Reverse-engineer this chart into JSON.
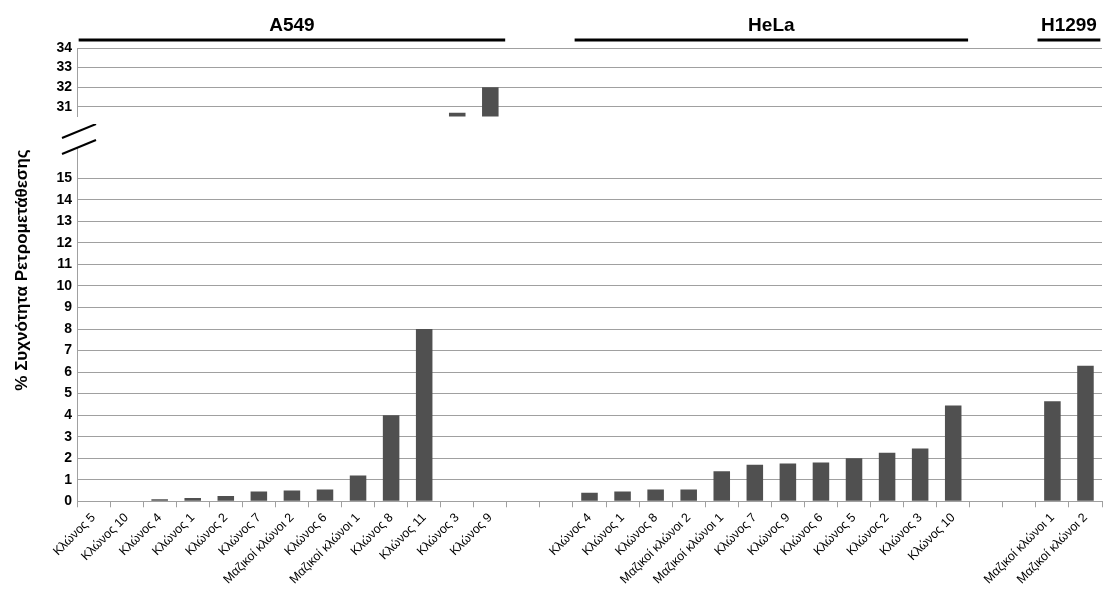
{
  "chart_data": [
    {
      "type": "bar",
      "annotations": [
        "A549",
        "HeLa",
        "H1299"
      ],
      "values": [
        null,
        null,
        null,
        null,
        null,
        null,
        null,
        null,
        null,
        null,
        null,
        30.7,
        32,
        null,
        null,
        null,
        null,
        null,
        null,
        null,
        null,
        null,
        null,
        null,
        null,
        null,
        null,
        null,
        null,
        null,
        null
      ],
      "color": "#505050",
      "ylim": [
        30.5,
        34
      ],
      "yticks": [
        31,
        32,
        33,
        34
      ],
      "grid": "y",
      "tick_labels": "y"
    },
    {
      "type": "bar",
      "ylabel": "% Συχνότητα Ρετρομετάθεσης",
      "categories": [
        "Κλώνος 5",
        "Κλώνος 10",
        "Κλώνος 4",
        "Κλώνος 1",
        "Κλώνος 2",
        "Κλώνος 7",
        "Μαζικοί κλώνοι 2",
        "Κλώνος 6",
        "Μαζικοί κλώνοι 1",
        "Κλώνος 8",
        "Κλώνος 11",
        "Κλώνος 3",
        "Κλώνος 9",
        null,
        null,
        "Κλώνος 4",
        "Κλώνος 1",
        "Κλώνος 8",
        "Μαζικοί κλώνοι 2",
        "Μαζικοί κλώνοι 1",
        "Κλώνος 7",
        "Κλώνος 9",
        "Κλώνος 6",
        "Κλώνος 5",
        "Κλώνος 2",
        "Κλώνος 3",
        "Κλώνος 10",
        null,
        null,
        "Μαζικοί κλώνοι 1",
        "Μαζικοί κλώνοι 2"
      ],
      "values": [
        0,
        0,
        0.1,
        0.15,
        0.25,
        0.45,
        0.5,
        0.55,
        1.2,
        4,
        8,
        null,
        null,
        null,
        null,
        0.4,
        0.45,
        0.55,
        0.55,
        1.4,
        1.7,
        1.75,
        1.8,
        2,
        2.25,
        2.45,
        4.45,
        null,
        null,
        4.65,
        6.3
      ],
      "color": "#505050",
      "ylim": [
        0,
        16.5
      ],
      "yticks": [
        0,
        1,
        2,
        3,
        4,
        5,
        6,
        7,
        8,
        9,
        10,
        11,
        12,
        13,
        14,
        15
      ],
      "grid": "y"
    }
  ]
}
